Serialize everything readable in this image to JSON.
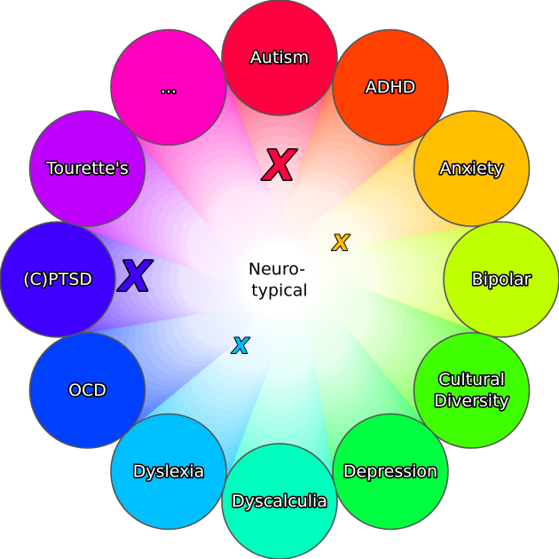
{
  "center": {
    "lines": [
      "Neuro-",
      "typical"
    ]
  },
  "nodes": [
    {
      "lines": [
        "Autism"
      ],
      "color": "#ff0040"
    },
    {
      "lines": [
        "ADHD"
      ],
      "color": "#ff4000"
    },
    {
      "lines": [
        "Anxiety"
      ],
      "color": "#ffbf00"
    },
    {
      "lines": [
        "Bipolar"
      ],
      "color": "#bfff00"
    },
    {
      "lines": [
        "Cultural",
        "Diversity"
      ],
      "color": "#40ff00"
    },
    {
      "lines": [
        "Depression"
      ],
      "color": "#00ff40"
    },
    {
      "lines": [
        "Dyscalculia"
      ],
      "color": "#00ffbf"
    },
    {
      "lines": [
        "Dyslexia"
      ],
      "color": "#00bfff"
    },
    {
      "lines": [
        "OCD"
      ],
      "color": "#0040ff"
    },
    {
      "lines": [
        "(C)PTSD"
      ],
      "color": "#4000ff"
    },
    {
      "lines": [
        "Tourette's"
      ],
      "color": "#bf00ff"
    },
    {
      "lines": [
        "..."
      ],
      "color": "#ff00bf"
    }
  ],
  "marks": [
    {
      "node": "Autism",
      "glyph": "X",
      "color": "#ff0040",
      "level": 0.5,
      "size": "large"
    },
    {
      "node": "Anxiety",
      "glyph": "X",
      "color": "#ffbf00",
      "level": 0.32,
      "size": "small"
    },
    {
      "node": "(C)PTSD",
      "glyph": "X",
      "color": "#4000ff",
      "level": 0.65,
      "size": "large"
    },
    {
      "node": "Dyslexia",
      "glyph": "X",
      "color": "#00bfff",
      "level": 0.35,
      "size": "small"
    }
  ],
  "style": {
    "node_outline": "#555555"
  }
}
